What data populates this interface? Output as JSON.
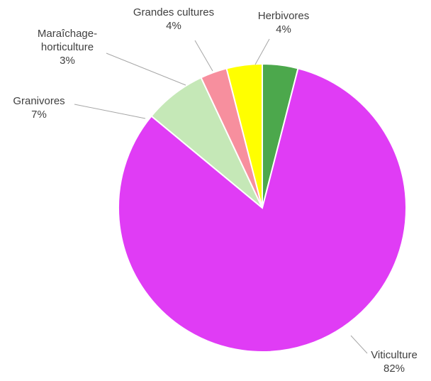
{
  "chart_data": {
    "type": "pie",
    "title": "",
    "slices": [
      {
        "label": "Herbivores",
        "value": 4,
        "value_label": "4%",
        "color": "#4ca84c"
      },
      {
        "label": "Viticulture",
        "value": 82,
        "value_label": "82%",
        "color": "#e03cf5"
      },
      {
        "label": "Granivores",
        "value": 7,
        "value_label": "7%",
        "color": "#c5e8b7"
      },
      {
        "label": "Maraîchage-",
        "label_line2": "horticulture",
        "value": 3,
        "value_label": "3%",
        "color": "#f78f9e"
      },
      {
        "label": "Grandes cultures",
        "value": 4,
        "value_label": "4%",
        "color": "#ffff00"
      }
    ],
    "start_angle_deg": 0,
    "direction": "clockwise",
    "legend": "none"
  }
}
